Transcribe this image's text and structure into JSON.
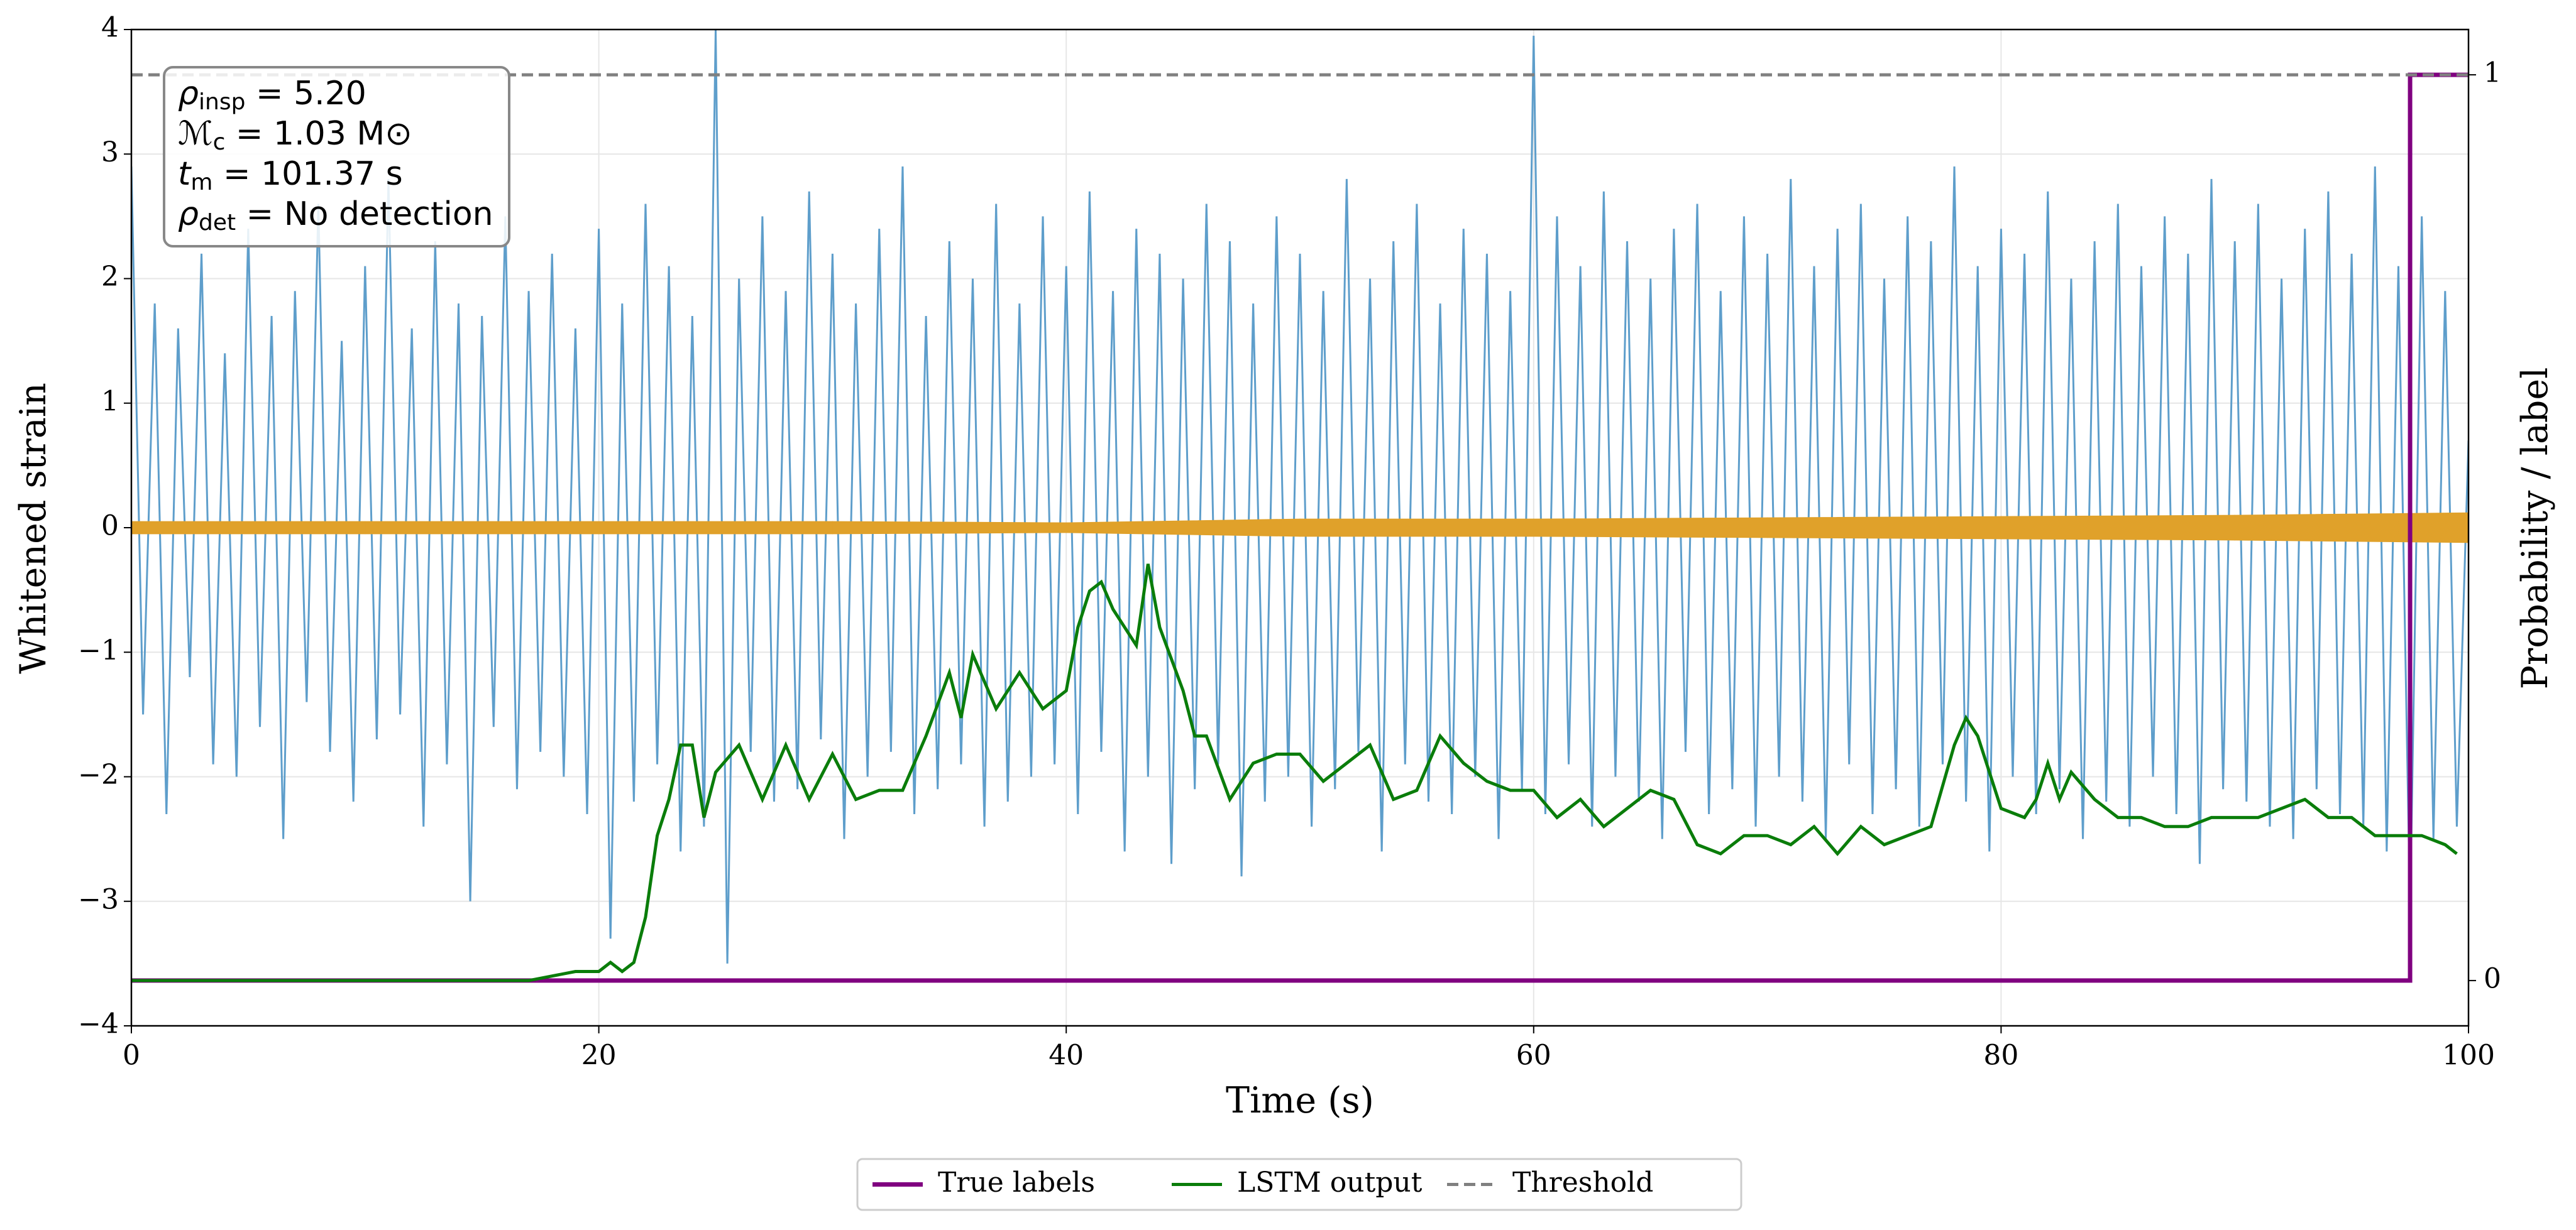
{
  "chart_data": {
    "type": "line",
    "xlabel": "Time (s)",
    "ylabel": "Whitened strain",
    "y2label": "Probability / label",
    "xlim": [
      0,
      100
    ],
    "xticks": [
      0,
      20,
      40,
      60,
      80,
      100
    ],
    "ylim": [
      -4,
      4
    ],
    "yticks": [
      {
        "value": -4,
        "label": "−4"
      },
      {
        "value": -3,
        "label": "−3"
      },
      {
        "value": -2,
        "label": "−2"
      },
      {
        "value": -1,
        "label": "−1"
      },
      0,
      1,
      2,
      3,
      4
    ],
    "y2lim": [
      -0.05,
      1.05
    ],
    "y2ticks": [
      0,
      1
    ],
    "grid": true,
    "legend": "below",
    "annotations": [
      {
        "main": "ρ",
        "sub": "insp",
        "rest": " = 5.20"
      },
      {
        "main": "ℳ",
        "sub": "c",
        "rest": " = 1.03 M⊙"
      },
      {
        "main": "t",
        "sub": "m",
        "rest": " = 101.37 s"
      },
      {
        "main": "ρ",
        "sub": "det",
        "rest": " = No detection"
      }
    ],
    "series": [
      {
        "color": "#5599c8",
        "x": [
          0,
          0.5,
          1,
          1.5,
          2,
          2.5,
          3,
          3.5,
          4,
          4.5,
          5,
          5.5,
          6,
          6.5,
          7,
          7.5,
          8,
          8.5,
          9,
          9.5,
          10,
          10.5,
          11,
          11.5,
          12,
          12.5,
          13,
          13.5,
          14,
          14.5,
          15,
          15.5,
          16,
          16.5,
          17,
          17.5,
          18,
          18.5,
          19,
          19.5,
          20,
          20.5,
          21,
          21.5,
          22,
          22.5,
          23,
          23.5,
          24,
          24.5,
          25,
          25.5,
          26,
          26.5,
          27,
          27.5,
          28,
          28.5,
          29,
          29.5,
          30,
          30.5,
          31,
          31.5,
          32,
          32.5,
          33,
          33.5,
          34,
          34.5,
          35,
          35.5,
          36,
          36.5,
          37,
          37.5,
          38,
          38.5,
          39,
          39.5,
          40,
          40.5,
          41,
          41.5,
          42,
          42.5,
          43,
          43.5,
          44,
          44.5,
          45,
          45.5,
          46,
          46.5,
          47,
          47.5,
          48,
          48.5,
          49,
          49.5,
          50,
          50.5,
          51,
          51.5,
          52,
          52.5,
          53,
          53.5,
          54,
          54.5,
          55,
          55.5,
          56,
          56.5,
          57,
          57.5,
          58,
          58.5,
          59,
          59.5,
          60,
          60.5,
          61,
          61.5,
          62,
          62.5,
          63,
          63.5,
          64,
          64.5,
          65,
          65.5,
          66,
          66.5,
          67,
          67.5,
          68,
          68.5,
          69,
          69.5,
          70,
          70.5,
          71,
          71.5,
          72,
          72.5,
          73,
          73.5,
          74,
          74.5,
          75,
          75.5,
          76,
          76.5,
          77,
          77.5,
          78,
          78.5,
          79,
          79.5,
          80,
          80.5,
          81,
          81.5,
          82,
          82.5,
          83,
          83.5,
          84,
          84.5,
          85,
          85.5,
          86,
          86.5,
          87,
          87.5,
          88,
          88.5,
          89,
          89.5,
          90,
          90.5,
          91,
          91.5,
          92,
          92.5,
          93,
          93.5,
          94,
          94.5,
          95,
          95.5,
          96,
          96.5,
          97,
          97.5,
          98,
          98.5,
          99,
          99.5,
          100
        ],
        "values": [
          2.9,
          -1.5,
          1.8,
          -2.3,
          1.6,
          -1.2,
          2.2,
          -1.9,
          1.4,
          -2.0,
          2.4,
          -1.6,
          1.7,
          -2.5,
          1.9,
          -1.4,
          2.6,
          -1.8,
          1.5,
          -2.2,
          2.1,
          -1.7,
          2.8,
          -1.5,
          1.6,
          -2.4,
          2.3,
          -1.9,
          1.8,
          -3.0,
          1.7,
          -1.6,
          2.5,
          -2.1,
          1.9,
          -1.8,
          2.2,
          -2.0,
          1.6,
          -2.3,
          2.4,
          -3.3,
          1.8,
          -2.2,
          2.6,
          -1.9,
          2.1,
          -2.6,
          1.7,
          -2.4,
          4.0,
          -3.5,
          2.0,
          -1.8,
          2.5,
          -2.2,
          1.9,
          -2.1,
          2.7,
          -1.7,
          2.2,
          -2.5,
          1.8,
          -2.0,
          2.4,
          -1.8,
          2.9,
          -2.3,
          1.7,
          -2.1,
          2.3,
          -1.9,
          2.0,
          -2.4,
          2.6,
          -2.2,
          1.8,
          -2.0,
          2.5,
          -1.9,
          2.1,
          -2.3,
          2.7,
          -1.8,
          1.9,
          -2.6,
          2.4,
          -2.0,
          2.2,
          -2.7,
          2.0,
          -2.1,
          2.6,
          -1.9,
          2.3,
          -2.8,
          1.8,
          -2.2,
          2.5,
          -2.0,
          2.2,
          -2.4,
          1.9,
          -2.1,
          2.8,
          -1.8,
          2.0,
          -2.6,
          2.3,
          -1.9,
          2.6,
          -2.2,
          1.8,
          -2.3,
          2.4,
          -2.0,
          2.2,
          -2.5,
          1.9,
          -2.1,
          3.95,
          -2.3,
          2.5,
          -1.9,
          2.1,
          -2.4,
          2.7,
          -2.0,
          2.3,
          -2.2,
          2.0,
          -2.5,
          2.4,
          -1.8,
          2.6,
          -2.3,
          1.9,
          -2.1,
          2.5,
          -2.4,
          2.2,
          -2.0,
          2.8,
          -2.2,
          2.1,
          -2.5,
          2.4,
          -1.9,
          2.6,
          -2.3,
          2.0,
          -2.1,
          2.5,
          -2.4,
          2.3,
          -1.9,
          2.9,
          -2.2,
          2.1,
          -2.6,
          2.4,
          -2.0,
          2.2,
          -2.3,
          2.7,
          -2.1,
          2.0,
          -2.5,
          2.3,
          -2.2,
          2.6,
          -2.4,
          2.1,
          -2.0,
          2.5,
          -2.3,
          2.2,
          -2.7,
          2.8,
          -2.1,
          2.3,
          -2.2,
          2.6,
          -2.4,
          2.0,
          -2.5,
          2.4,
          -2.1,
          2.7,
          -2.3,
          2.2,
          -2.4,
          2.9,
          -2.6,
          2.1,
          -3.1,
          2.5,
          -2.5,
          1.9,
          -2.4,
          0.7
        ]
      },
      {
        "color": "#e0a12a",
        "style": "band",
        "x": [
          0,
          10,
          20,
          30,
          40,
          50,
          60,
          70,
          80,
          90,
          100
        ],
        "values": [
          0.05,
          0.05,
          0.05,
          0.05,
          0.04,
          0.07,
          0.07,
          0.08,
          0.09,
          0.1,
          0.12
        ]
      },
      {
        "name": "True labels",
        "color": "#800080",
        "axis": "y2",
        "width": 7,
        "x": [
          0,
          97.5,
          97.5,
          100
        ],
        "values": [
          0,
          0,
          1,
          1
        ]
      },
      {
        "name": "LSTM output",
        "color": "#0a7d0a",
        "axis": "y2",
        "width": 5,
        "x": [
          0,
          5,
          10,
          15,
          17,
          19,
          20,
          20.5,
          21,
          21.5,
          22,
          22.5,
          23,
          23.5,
          24,
          24.5,
          25,
          26,
          27,
          28,
          29,
          30,
          31,
          32,
          33,
          34,
          35,
          35.5,
          36,
          37,
          38,
          39,
          40,
          40.5,
          41,
          41.5,
          42,
          43,
          43.5,
          44,
          45,
          45.5,
          46,
          47,
          48,
          49,
          50,
          51,
          52,
          53,
          54,
          55,
          56,
          57,
          58,
          59,
          60,
          61,
          62,
          63,
          64,
          65,
          66,
          67,
          68,
          69,
          70,
          71,
          72,
          73,
          74,
          75,
          76,
          77,
          78,
          78.5,
          79,
          80,
          81,
          81.5,
          82,
          82.5,
          83,
          84,
          85,
          86,
          87,
          88,
          89,
          90,
          91,
          92,
          93,
          94,
          95,
          96,
          97,
          98,
          99,
          99.5
        ],
        "values": [
          0,
          0,
          0,
          0,
          0,
          0.01,
          0.01,
          0.02,
          0.01,
          0.02,
          0.07,
          0.16,
          0.2,
          0.26,
          0.26,
          0.18,
          0.23,
          0.26,
          0.2,
          0.26,
          0.2,
          0.25,
          0.2,
          0.21,
          0.21,
          0.27,
          0.34,
          0.29,
          0.36,
          0.3,
          0.34,
          0.3,
          0.32,
          0.39,
          0.43,
          0.44,
          0.41,
          0.37,
          0.46,
          0.39,
          0.32,
          0.27,
          0.27,
          0.2,
          0.24,
          0.25,
          0.25,
          0.22,
          0.24,
          0.26,
          0.2,
          0.21,
          0.27,
          0.24,
          0.22,
          0.21,
          0.21,
          0.18,
          0.2,
          0.17,
          0.19,
          0.21,
          0.2,
          0.15,
          0.14,
          0.16,
          0.16,
          0.15,
          0.17,
          0.14,
          0.17,
          0.15,
          0.16,
          0.17,
          0.26,
          0.29,
          0.27,
          0.19,
          0.18,
          0.2,
          0.24,
          0.2,
          0.23,
          0.2,
          0.18,
          0.18,
          0.17,
          0.17,
          0.18,
          0.18,
          0.18,
          0.19,
          0.2,
          0.18,
          0.18,
          0.16,
          0.16,
          0.16,
          0.15,
          0.14
        ]
      },
      {
        "name": "Threshold",
        "color": "#808080",
        "axis": "y2",
        "dashed": true,
        "width": 5,
        "x": [
          0,
          100
        ],
        "values": [
          1,
          1
        ]
      }
    ]
  }
}
